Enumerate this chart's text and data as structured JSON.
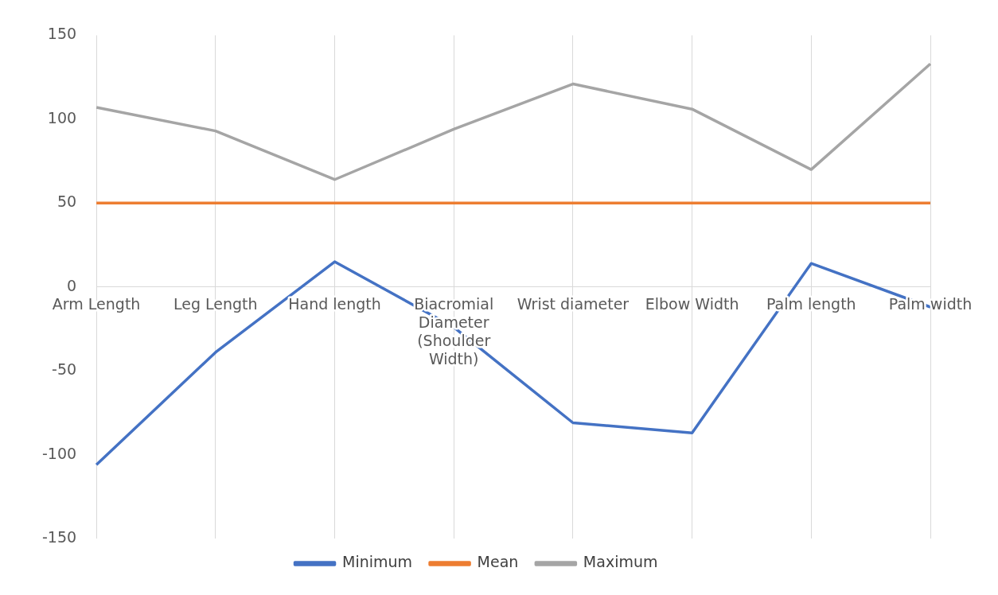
{
  "chart_data": {
    "type": "line",
    "categories": [
      "Arm Length",
      "Leg Length",
      "Hand length",
      "Biacromial Diameter (Shoulder Width)",
      "Wrist diameter",
      "Elbow Width",
      "Palm length",
      "Palm width"
    ],
    "series": [
      {
        "name": "Minimum",
        "color": "#4472c4",
        "values": [
          -106,
          -39,
          15,
          -24,
          -81,
          -87,
          14,
          -12
        ]
      },
      {
        "name": "Mean",
        "color": "#ed7d31",
        "values": [
          50,
          50,
          50,
          50,
          50,
          50,
          50,
          50
        ]
      },
      {
        "name": "Maximum",
        "color": "#a5a5a5",
        "values": [
          107,
          93,
          64,
          94,
          121,
          106,
          70,
          133
        ]
      }
    ],
    "ylim": [
      -150,
      150
    ],
    "yticks": [
      -150,
      -100,
      -50,
      0,
      50,
      100,
      150
    ],
    "grid": "x",
    "legend": "bottom",
    "marker": "none",
    "line_style": "solid"
  }
}
